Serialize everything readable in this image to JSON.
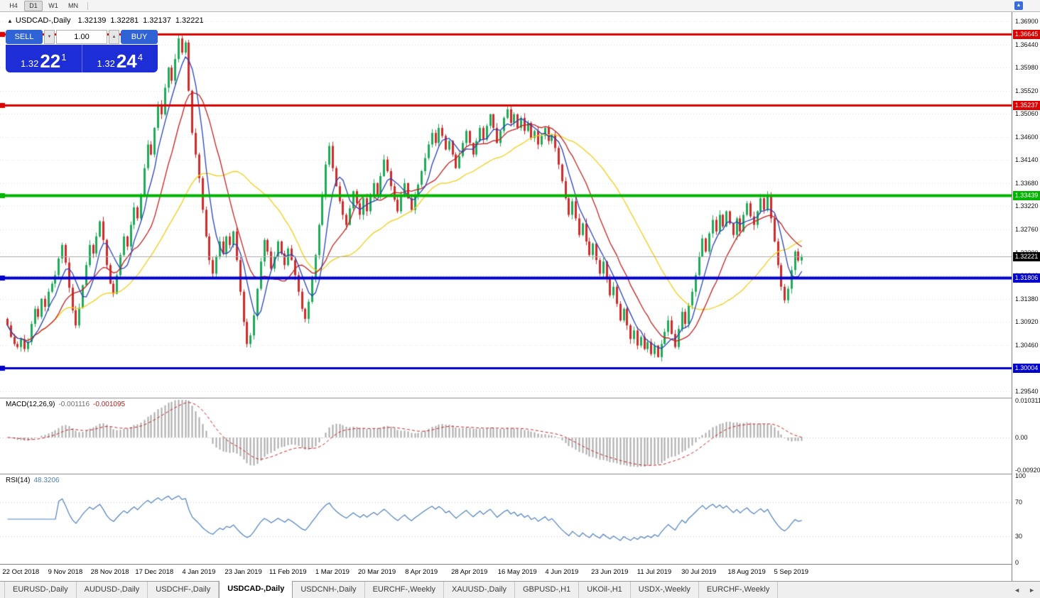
{
  "toolbar": {
    "timeframes": [
      {
        "label": "H4",
        "active": false
      },
      {
        "label": "D1",
        "active": true
      },
      {
        "label": "W1",
        "active": false
      },
      {
        "label": "MN",
        "active": false
      }
    ],
    "corner_icon": "▲"
  },
  "chart_header": {
    "icon": "▲",
    "symbol": "USDCAD-,Daily",
    "open": "1.32139",
    "high": "1.32281",
    "low": "1.32137",
    "close": "1.32221"
  },
  "trade_panel": {
    "sell_label": "SELL",
    "buy_label": "BUY",
    "volume": "1.00",
    "spinner_down": "▼",
    "spinner_up": "▲",
    "sell_price": {
      "prefix": "1.32",
      "big": "22",
      "sup": "1"
    },
    "buy_price": {
      "prefix": "1.32",
      "big": "24",
      "sup": "4"
    }
  },
  "price_axis": [
    "1.36900",
    "1.36440",
    "1.35980",
    "1.35520",
    "1.35060",
    "1.34600",
    "1.34140",
    "1.33680",
    "1.33220",
    "1.32760",
    "1.32300",
    "1.31840",
    "1.31380",
    "1.30920",
    "1.30460",
    "1.30000",
    "1.29540"
  ],
  "macd_panel": {
    "name": "MACD(12,26,9)",
    "main_value": "-0.001116",
    "signal_value": "-0.001095",
    "axis": [
      {
        "text": "0.010311",
        "v": 0.010311
      },
      {
        "text": "0.00",
        "v": 0
      },
      {
        "text": "-0.009203",
        "v": -0.009203
      }
    ]
  },
  "rsi_panel": {
    "name": "RSI(14)",
    "value": "48.3206",
    "axis": [
      {
        "text": "100",
        "v": 100
      },
      {
        "text": "70",
        "v": 70
      },
      {
        "text": "30",
        "v": 30
      },
      {
        "text": "0",
        "v": 0
      }
    ],
    "levels": [
      70,
      30
    ]
  },
  "date_axis": [
    {
      "text": "22 Oct 2018",
      "i": 4
    },
    {
      "text": "9 Nov 2018",
      "i": 17
    },
    {
      "text": "28 Nov 2018",
      "i": 30
    },
    {
      "text": "17 Dec 2018",
      "i": 43
    },
    {
      "text": "4 Jan 2019",
      "i": 56
    },
    {
      "text": "23 Jan 2019",
      "i": 69
    },
    {
      "text": "11 Feb 2019",
      "i": 82
    },
    {
      "text": "1 Mar 2019",
      "i": 95
    },
    {
      "text": "20 Mar 2019",
      "i": 108
    },
    {
      "text": "8 Apr 2019",
      "i": 121
    },
    {
      "text": "28 Apr 2019",
      "i": 135
    },
    {
      "text": "16 May 2019",
      "i": 149
    },
    {
      "text": "4 Jun 2019",
      "i": 162
    },
    {
      "text": "23 Jun 2019",
      "i": 176
    },
    {
      "text": "11 Jul 2019",
      "i": 189
    },
    {
      "text": "30 Jul 2019",
      "i": 202
    },
    {
      "text": "18 Aug 2019",
      "i": 216
    },
    {
      "text": "5 Sep 2019",
      "i": 229
    }
  ],
  "tabs": {
    "items": [
      {
        "label": "EURUSD-,Daily",
        "active": false
      },
      {
        "label": "AUDUSD-,Daily",
        "active": false
      },
      {
        "label": "USDCHF-,Daily",
        "active": false
      },
      {
        "label": "USDCAD-,Daily",
        "active": true
      },
      {
        "label": "USDCNH-,Daily",
        "active": false
      },
      {
        "label": "EURCHF-,Weekly",
        "active": false
      },
      {
        "label": "XAUUSD-,Daily",
        "active": false
      },
      {
        "label": "GBPUSD-,H1",
        "active": false
      },
      {
        "label": "UKOil-,H1",
        "active": false
      },
      {
        "label": "USDX-,Weekly",
        "active": false
      },
      {
        "label": "EURCHF-,Weekly",
        "active": false
      }
    ],
    "nav_left": "◄",
    "nav_right": "►"
  },
  "chart_data": {
    "type": "candlestick",
    "symbol": "USDCAD",
    "timeframe": "Daily",
    "x_range": [
      "22 Oct 2018",
      "12 Sep 2019"
    ],
    "ylim": [
      1.2954,
      1.369
    ],
    "open_first": 1.3098,
    "closes": [
      1.3085,
      1.3062,
      1.3048,
      1.3042,
      1.3058,
      1.3038,
      1.3052,
      1.3088,
      1.3118,
      1.3102,
      1.3138,
      1.3122,
      1.3152,
      1.3168,
      1.3185,
      1.3218,
      1.3245,
      1.321,
      1.316,
      1.3115,
      1.3085,
      1.312,
      1.3165,
      1.3205,
      1.3245,
      1.3228,
      1.3262,
      1.3292,
      1.3255,
      1.3205,
      1.3168,
      1.3148,
      1.3185,
      1.3225,
      1.3262,
      1.3242,
      1.3285,
      1.332,
      1.3298,
      1.3345,
      1.3398,
      1.3445,
      1.3425,
      1.3478,
      1.3525,
      1.3505,
      1.3558,
      1.3598,
      1.3572,
      1.3615,
      1.3656,
      1.3628,
      1.3648,
      1.3552,
      1.3468,
      1.3425,
      1.3378,
      1.3315,
      1.3262,
      1.3215,
      1.3188,
      1.3222,
      1.3252,
      1.3228,
      1.3262,
      1.3245,
      1.3272,
      1.3215,
      1.3152,
      1.3092,
      1.3048,
      1.3065,
      1.3105,
      1.3158,
      1.3212,
      1.3255,
      1.3232,
      1.3198,
      1.3222,
      1.3252,
      1.3228,
      1.3205,
      1.3238,
      1.3215,
      1.3185,
      1.3152,
      1.3118,
      1.3098,
      1.3132,
      1.3178,
      1.3225,
      1.3285,
      1.3342,
      1.3405,
      1.3442,
      1.3398,
      1.3362,
      1.3332,
      1.3305,
      1.3285,
      1.3318,
      1.3352,
      1.3328,
      1.3305,
      1.3338,
      1.3312,
      1.3342,
      1.3368,
      1.3345,
      1.3382,
      1.3415,
      1.3392,
      1.3362,
      1.3335,
      1.3312,
      1.3342,
      1.3368,
      1.3338,
      1.3315,
      1.3342,
      1.3365,
      1.3392,
      1.3418,
      1.3445,
      1.3468,
      1.3448,
      1.3478,
      1.3462,
      1.3435,
      1.3452,
      1.3425,
      1.3398,
      1.3422,
      1.3448,
      1.3472,
      1.3448,
      1.3425,
      1.3452,
      1.3478,
      1.3455,
      1.3482,
      1.3505,
      1.3478,
      1.3448,
      1.3472,
      1.3498,
      1.3515,
      1.3488,
      1.3505,
      1.3478,
      1.3498,
      1.3472,
      1.3488,
      1.3458,
      1.3472,
      1.3445,
      1.3462,
      1.3478,
      1.3452,
      1.3465,
      1.3438,
      1.3405,
      1.3372,
      1.3338,
      1.3305,
      1.3332,
      1.3298,
      1.3265,
      1.3288,
      1.3252,
      1.3225,
      1.3248,
      1.3215,
      1.3188,
      1.3212,
      1.3178,
      1.3145,
      1.3162,
      1.3128,
      1.3095,
      1.3118,
      1.3085,
      1.3058,
      1.3075,
      1.3045,
      1.3062,
      1.3038,
      1.3052,
      1.3028,
      1.3045,
      1.3022,
      1.3048,
      1.3072,
      1.3095,
      1.3068,
      1.3042,
      1.3078,
      1.3112,
      1.3088,
      1.3125,
      1.3152,
      1.3185,
      1.3222,
      1.3258,
      1.3232,
      1.3268,
      1.3295,
      1.3272,
      1.3305,
      1.3282,
      1.3312,
      1.3288,
      1.3265,
      1.3298,
      1.3272,
      1.3305,
      1.3328,
      1.3302,
      1.3285,
      1.3312,
      1.3338,
      1.3315,
      1.3342,
      1.3298,
      1.3252,
      1.3205,
      1.3162,
      1.3135,
      1.3158,
      1.3195,
      1.3232,
      1.3214,
      1.3222
    ],
    "levels": [
      {
        "price": 1.36645,
        "label": "1.36645",
        "color": "#dd0000",
        "width": 3,
        "type": "resistance"
      },
      {
        "price": 1.35237,
        "label": "1.35237",
        "color": "#dd0000",
        "width": 3,
        "type": "resistance"
      },
      {
        "price": 1.33439,
        "label": "1.33439",
        "color": "#00b400",
        "width": 4,
        "type": "pivot"
      },
      {
        "price": 1.31806,
        "label": "1.31806",
        "color": "#0000cc",
        "width": 4,
        "type": "support"
      },
      {
        "price": 1.30004,
        "label": "1.30004",
        "color": "#0000cc",
        "width": 3,
        "type": "support"
      }
    ],
    "current_price": {
      "value": 1.32221,
      "label": "1.32221",
      "color": "#000000"
    },
    "moving_averages": [
      {
        "period": 34,
        "color": "#f0cf1a"
      },
      {
        "period": 14,
        "color": "#c22222"
      },
      {
        "period": 6,
        "color": "#2743b8"
      }
    ],
    "macd": {
      "fast": 12,
      "slow": 26,
      "signal": 9,
      "histogram_color": "#ababab",
      "signal_color": "#cc2222"
    },
    "rsi": {
      "period": 14,
      "color": "#4f81bd"
    },
    "candle_up_color": "#1faa59",
    "candle_down_color": "#d02b2b"
  }
}
